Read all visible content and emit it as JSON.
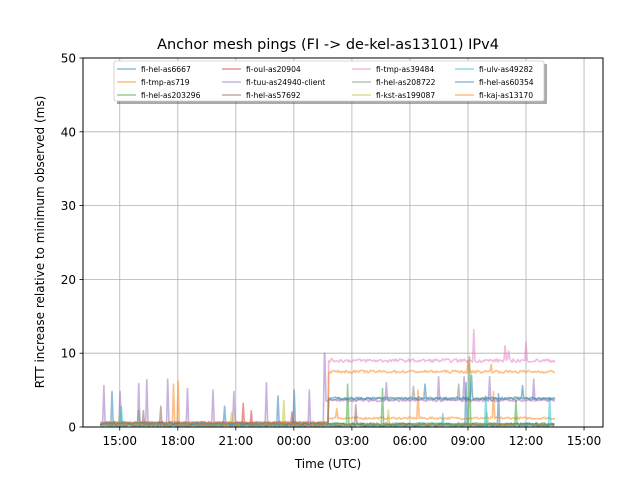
{
  "chart_data": {
    "type": "line",
    "title": "Anchor mesh pings (FI -> de-kel-as13101) IPv4",
    "xlabel": "Time (UTC)",
    "ylabel": "RTT increase relative to minimum observed (ms)",
    "xlim_hours": [
      13.1,
      39.98
    ],
    "ylim": [
      0,
      50
    ],
    "grid": true,
    "legend_placement": "top-center",
    "x_ticks": [
      {
        "value": 15,
        "label": "15:00"
      },
      {
        "value": 18,
        "label": "18:00"
      },
      {
        "value": 21,
        "label": "21:00"
      },
      {
        "value": 24,
        "label": "00:00"
      },
      {
        "value": 27,
        "label": "03:00"
      },
      {
        "value": 30,
        "label": "06:00"
      },
      {
        "value": 33,
        "label": "09:00"
      },
      {
        "value": 36,
        "label": "12:00"
      },
      {
        "value": 39,
        "label": "15:00"
      }
    ],
    "y_ticks": [
      0,
      10,
      20,
      30,
      40,
      50
    ],
    "series": [
      {
        "name": "fi-hel-as6667",
        "color": "#1f77b4",
        "segments": [
          [
            14.0,
            37.5,
            0.4
          ]
        ],
        "spikes": [
          [
            14.6,
            4.8
          ],
          [
            20.4,
            2.8
          ],
          [
            23.2,
            4.2
          ],
          [
            32.9,
            6.0
          ],
          [
            34.6,
            4.5
          ]
        ]
      },
      {
        "name": "fi-tmp-as719",
        "color": "#ff7f0e",
        "segments": [
          [
            14.0,
            25.8,
            0.6
          ],
          [
            25.8,
            37.5,
            1.2
          ]
        ],
        "spikes": [
          [
            17.8,
            5.8
          ],
          [
            26.2,
            2.5
          ],
          [
            30.4,
            5.0
          ],
          [
            34.3,
            4.8
          ]
        ]
      },
      {
        "name": "fi-hel-as203296",
        "color": "#2ca02c",
        "segments": [
          [
            14.0,
            37.5,
            0.4
          ]
        ],
        "spikes": [
          [
            16.0,
            2.2
          ],
          [
            26.8,
            5.8
          ],
          [
            28.6,
            5.2
          ],
          [
            33.1,
            9.5
          ],
          [
            35.5,
            3.6
          ]
        ]
      },
      {
        "name": "fi-oul-as20904",
        "color": "#d62728",
        "segments": [
          [
            14.0,
            37.5,
            0.3
          ]
        ],
        "spikes": [
          [
            21.4,
            3.2
          ],
          [
            21.8,
            2.2
          ],
          [
            23.9,
            2.0
          ]
        ]
      },
      {
        "name": "fi-tuu-as24940-client",
        "color": "#9467bd",
        "segments": [
          [
            14.0,
            25.6,
            0.6
          ],
          [
            25.6,
            37.5,
            3.6
          ]
        ],
        "spikes": [
          [
            14.2,
            5.6
          ],
          [
            15.0,
            4.8
          ],
          [
            16.0,
            5.9
          ],
          [
            16.4,
            6.4
          ],
          [
            17.5,
            6.5
          ],
          [
            18.5,
            5.2
          ],
          [
            19.8,
            5.0
          ],
          [
            20.9,
            4.8
          ],
          [
            22.6,
            6.0
          ],
          [
            24.8,
            5.0
          ],
          [
            25.6,
            10.0
          ],
          [
            28.8,
            6.0
          ],
          [
            31.5,
            6.8
          ],
          [
            32.8,
            6.8
          ],
          [
            34.1,
            6.8
          ],
          [
            36.4,
            6.5
          ]
        ]
      },
      {
        "name": "fi-hel-as57692",
        "color": "#8c564b",
        "segments": [
          [
            14.0,
            37.5,
            0.3
          ]
        ],
        "spikes": [
          [
            16.2,
            2.2
          ],
          [
            17.1,
            2.8
          ],
          [
            27.2,
            3.0
          ]
        ]
      },
      {
        "name": "fi-tmp-as39484",
        "color": "#e377c2",
        "segments": [
          [
            14.0,
            25.8,
            0.3
          ],
          [
            25.8,
            37.5,
            9.0
          ]
        ],
        "spikes": [
          [
            33.3,
            13.2
          ],
          [
            34.9,
            11.0
          ],
          [
            35.1,
            10.3
          ],
          [
            36.0,
            11.5
          ]
        ]
      },
      {
        "name": "fi-hel-as208722",
        "color": "#7f7f7f",
        "segments": [
          [
            14.0,
            25.8,
            0.4
          ],
          [
            25.8,
            37.5,
            3.8
          ]
        ],
        "spikes": [
          [
            30.2,
            5.5
          ],
          [
            32.5,
            5.8
          ]
        ]
      },
      {
        "name": "fi-kst-as199087",
        "color": "#bcbd22",
        "segments": [
          [
            14.0,
            37.5,
            0.3
          ]
        ],
        "spikes": [
          [
            15.0,
            2.0
          ],
          [
            20.8,
            2.0
          ],
          [
            23.5,
            3.6
          ],
          [
            28.9,
            2.3
          ],
          [
            34.0,
            2.0
          ]
        ]
      },
      {
        "name": "fi-ulv-as49282",
        "color": "#17becf",
        "segments": [
          [
            14.0,
            37.5,
            0.2
          ]
        ],
        "spikes": [
          [
            15.1,
            2.8
          ],
          [
            31.7,
            1.8
          ],
          [
            33.9,
            4.2
          ],
          [
            37.2,
            4.0
          ]
        ]
      },
      {
        "name": "fi-hel-as60354",
        "color": "#1f77b4",
        "segments": [
          [
            14.0,
            25.8,
            0.5
          ],
          [
            25.8,
            37.5,
            3.9
          ]
        ],
        "spikes": [
          [
            24.0,
            5.0
          ],
          [
            30.8,
            5.8
          ],
          [
            33.2,
            7.0
          ],
          [
            35.8,
            5.6
          ]
        ]
      },
      {
        "name": "fi-kaj-as13170",
        "color": "#ff7f0e",
        "segments": [
          [
            14.0,
            25.8,
            0.5
          ],
          [
            25.8,
            37.5,
            7.5
          ]
        ],
        "spikes": [
          [
            18.0,
            6.2
          ],
          [
            33.0,
            9.0
          ],
          [
            34.2,
            8.5
          ]
        ]
      }
    ]
  }
}
